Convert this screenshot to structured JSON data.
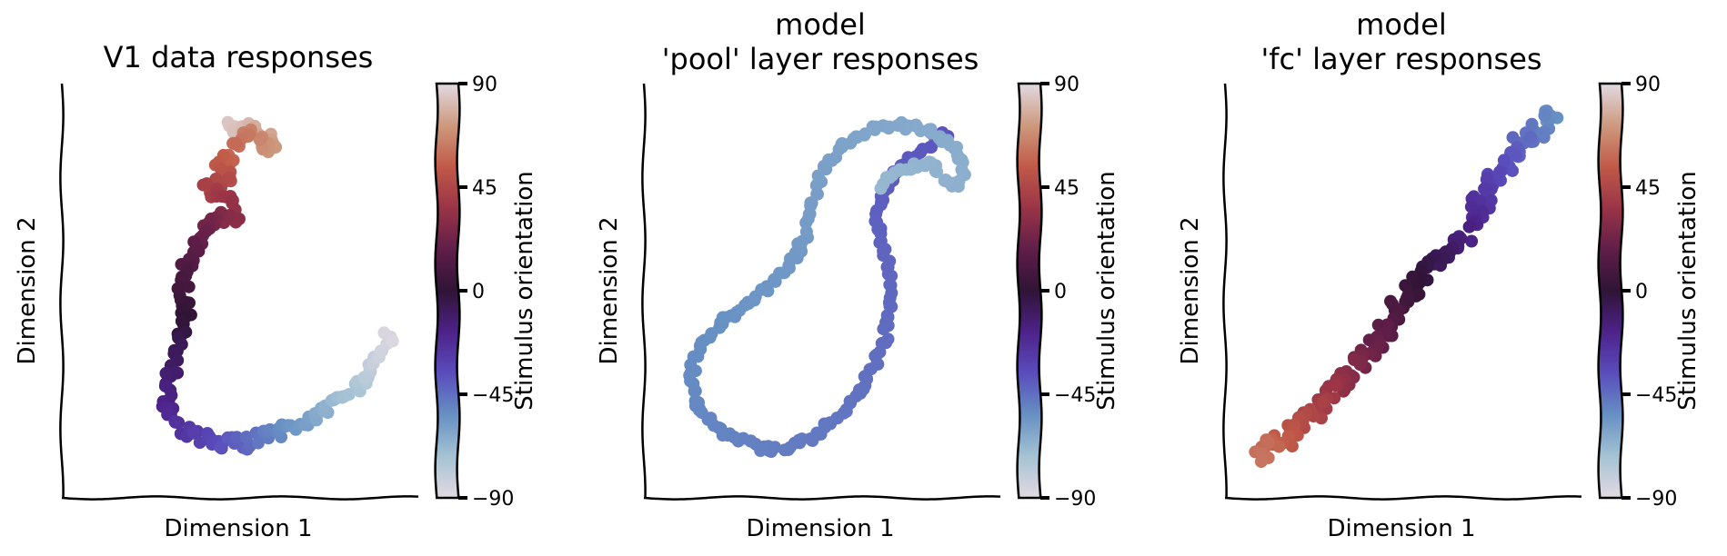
{
  "colormap": {
    "name": "twilight_shifted",
    "stops": [
      {
        "v": -90,
        "color": "#e2d9e2"
      },
      {
        "v": -72,
        "color": "#a5c3d4"
      },
      {
        "v": -54,
        "color": "#6790c3"
      },
      {
        "v": -36,
        "color": "#5a4dbd"
      },
      {
        "v": -18,
        "color": "#4d2289"
      },
      {
        "v": 0,
        "color": "#2f1436"
      },
      {
        "v": 18,
        "color": "#601e49"
      },
      {
        "v": 36,
        "color": "#9a3447"
      },
      {
        "v": 54,
        "color": "#c15a48"
      },
      {
        "v": 72,
        "color": "#cd9a7f"
      },
      {
        "v": 90,
        "color": "#e2d9e2"
      }
    ]
  },
  "chart_data": [
    {
      "type": "scatter",
      "title": "V1 data responses",
      "xlabel": "Dimension 1",
      "ylabel": "Dimension 2",
      "colorbar": {
        "label": "Stimulus orientation",
        "ticks": [
          90,
          45,
          0,
          -45,
          -90
        ],
        "tick_labels": [
          "90",
          "45",
          "0",
          "−45",
          "−90"
        ],
        "range": [
          -90,
          90
        ]
      },
      "xlim": [
        0,
        100
      ],
      "ylim": [
        0,
        100
      ],
      "path": [
        [
          47,
          10
        ],
        [
          52,
          11
        ],
        [
          56,
          12
        ],
        [
          60,
          16
        ],
        [
          57,
          14
        ],
        [
          52,
          12
        ],
        [
          48,
          16
        ],
        [
          44,
          20
        ],
        [
          48,
          22
        ],
        [
          45,
          24
        ],
        [
          41,
          26
        ],
        [
          46,
          28
        ],
        [
          50,
          32
        ],
        [
          41,
          33
        ],
        [
          38,
          38
        ],
        [
          35,
          44
        ],
        [
          34,
          50
        ],
        [
          35,
          56
        ],
        [
          33,
          63
        ],
        [
          31,
          69
        ],
        [
          30,
          73
        ],
        [
          29,
          76
        ],
        [
          30,
          79
        ],
        [
          32,
          82
        ],
        [
          35,
          84
        ],
        [
          39,
          85
        ],
        [
          43,
          87
        ],
        [
          46,
          88
        ],
        [
          48,
          86
        ],
        [
          50,
          87
        ],
        [
          53,
          86
        ],
        [
          57,
          85
        ],
        [
          61,
          84
        ],
        [
          65,
          83
        ],
        [
          70,
          81
        ],
        [
          75,
          78
        ],
        [
          80,
          75
        ],
        [
          85,
          71
        ],
        [
          89,
          66
        ],
        [
          92,
          61
        ]
      ],
      "n_points": 230,
      "seed": 7,
      "spread": 1.6,
      "orient_start": 85,
      "orient_end": -88
    },
    {
      "type": "scatter",
      "title": "model\n'pool' layer responses",
      "xlabel": "Dimension 1",
      "ylabel": "Dimension 2",
      "colorbar": {
        "label": "Stimulus orientation",
        "ticks": [
          90,
          45,
          0,
          -45,
          -90
        ],
        "tick_labels": [
          "90",
          "45",
          "0",
          "−45",
          "−90"
        ],
        "range": [
          -90,
          90
        ]
      },
      "xlim": [
        0,
        100
      ],
      "ylim": [
        0,
        100
      ],
      "path": [
        [
          85,
          12
        ],
        [
          80,
          15
        ],
        [
          72,
          20
        ],
        [
          67,
          26
        ],
        [
          65,
          34
        ],
        [
          68,
          42
        ],
        [
          69,
          52
        ],
        [
          68,
          60
        ],
        [
          65,
          68
        ],
        [
          60,
          75
        ],
        [
          54,
          81
        ],
        [
          47,
          86
        ],
        [
          40,
          88
        ],
        [
          33,
          88
        ],
        [
          27,
          86
        ],
        [
          22,
          84
        ],
        [
          18,
          81
        ],
        [
          15,
          78
        ],
        [
          14,
          75
        ],
        [
          13,
          71
        ],
        [
          14,
          67
        ],
        [
          17,
          62
        ],
        [
          22,
          58
        ],
        [
          28,
          54
        ],
        [
          35,
          49
        ],
        [
          42,
          43
        ],
        [
          45,
          37
        ],
        [
          47,
          29
        ],
        [
          50,
          21
        ],
        [
          56,
          14
        ],
        [
          64,
          11
        ],
        [
          72,
          10
        ],
        [
          78,
          11
        ],
        [
          84,
          13
        ],
        [
          88,
          17
        ],
        [
          90,
          21
        ],
        [
          88,
          25
        ],
        [
          84,
          23
        ],
        [
          80,
          19
        ],
        [
          74,
          20
        ],
        [
          70,
          21
        ],
        [
          67,
          25
        ]
      ],
      "n_points": 260,
      "seed": 11,
      "spread": 0.9,
      "orient_start": -38,
      "orient_end": -68
    },
    {
      "type": "scatter",
      "title": "model\n'fc' layer responses",
      "xlabel": "Dimension 1",
      "ylabel": "Dimension 2",
      "colorbar": {
        "label": "Stimulus orientation",
        "ticks": [
          90,
          45,
          0,
          -45,
          -90
        ],
        "tick_labels": [
          "90",
          "45",
          "0",
          "−45",
          "−90"
        ],
        "range": [
          -90,
          90
        ]
      },
      "xlim": [
        0,
        100
      ],
      "ylim": [
        0,
        100
      ],
      "path": [
        [
          92,
          7
        ],
        [
          87,
          11
        ],
        [
          82,
          16
        ],
        [
          76,
          22
        ],
        [
          72,
          28
        ],
        [
          70,
          33
        ],
        [
          67,
          37
        ],
        [
          62,
          42
        ],
        [
          57,
          46
        ],
        [
          52,
          50
        ],
        [
          48,
          55
        ],
        [
          45,
          59
        ],
        [
          42,
          63
        ],
        [
          38,
          67
        ],
        [
          35,
          70
        ],
        [
          31,
          74
        ],
        [
          28,
          77
        ],
        [
          24,
          80
        ],
        [
          20,
          83
        ],
        [
          16,
          86
        ],
        [
          12,
          88
        ],
        [
          9,
          90
        ]
      ],
      "n_points": 200,
      "seed": 23,
      "spread": 2.4,
      "orient_start": -55,
      "orient_end": 62
    }
  ]
}
